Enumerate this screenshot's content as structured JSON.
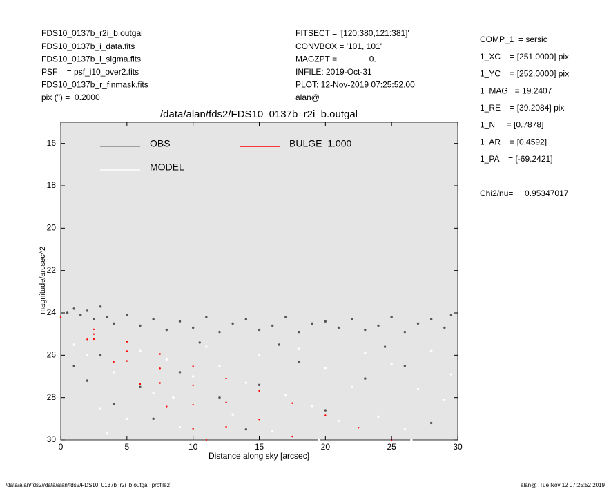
{
  "header_left": [
    "FDS10_0137b_r2i_b.outgal",
    "FDS10_0137b_i_data.fits",
    "FDS10_0137b_i_sigma.fits",
    "PSF    = psf_i10_over2.fits",
    "FDS10_0137b_r_finmask.fits",
    "pix (\") =  0.2000"
  ],
  "header_middle": [
    "FITSECT = '[120:380,121:381]'",
    "CONVBOX = '101, 101'",
    "MAGZPT =              0.",
    "INFILE: 2019-Oct-31",
    "PLOT: 12-Nov-2019 07:25:52.00",
    "alan@"
  ],
  "header_right": [
    "COMP_1  = sersic",
    "1_XC    = [251.0000] pix",
    "1_YC    = [252.0000] pix",
    "1_MAG   = 19.2407",
    "1_RE    = [39.2084] pix",
    "1_N     = [0.7878]",
    "1_AR    = [0.4592]",
    "1_PA    = [-69.2421]"
  ],
  "chi2": "Chi2/nu=     0.95347017",
  "footer_left": "/data/alan/fds2//data/alan/fds2/FDS10_0137b_r2i_b.outgal_profile2",
  "footer_right": "alan@  Tue Nov 12 07:25:52 2019",
  "chart_data": {
    "type": "scatter",
    "title": "/data/alan/fds2/FDS10_0137b_r2i_b.outgal",
    "xlabel": "Distance along sky [arcsec]",
    "ylabel": "magnitude/arcsec^2",
    "xlim": [
      0,
      30
    ],
    "ylim": [
      30,
      15
    ],
    "xticks": [
      0,
      5,
      10,
      15,
      20,
      25,
      30
    ],
    "yticks": [
      16,
      18,
      20,
      22,
      24,
      26,
      28,
      30
    ],
    "background": "#e5e5e5",
    "series": [
      {
        "name": "OBS",
        "color": "#555555",
        "x": [
          0.5,
          1,
          1.5,
          2,
          2.5,
          3,
          3.5,
          4,
          5,
          6,
          7,
          8,
          9,
          10,
          11,
          12,
          13,
          14,
          15,
          16,
          17,
          18,
          19,
          20,
          21,
          22,
          23,
          24,
          25,
          26,
          27,
          28,
          29,
          29.5,
          1,
          2,
          3,
          4,
          6,
          9,
          12,
          15,
          18,
          20,
          23,
          26,
          28,
          14,
          7,
          24.5,
          10.5,
          16.5
        ],
        "values": [
          24.0,
          23.8,
          24.1,
          23.9,
          24.3,
          23.7,
          24.2,
          24.5,
          24.1,
          24.6,
          24.3,
          24.8,
          24.4,
          24.7,
          24.2,
          24.9,
          24.5,
          24.3,
          24.8,
          24.6,
          24.2,
          24.9,
          24.5,
          24.4,
          24.7,
          24.3,
          24.8,
          24.6,
          24.2,
          24.9,
          24.5,
          24.3,
          24.7,
          24.1,
          26.5,
          27.2,
          26.0,
          28.3,
          27.5,
          26.8,
          28.0,
          27.4,
          26.3,
          28.6,
          27.1,
          26.5,
          29.2,
          29.5,
          29.0,
          25.6,
          25.4,
          25.5
        ]
      },
      {
        "name": "MODEL",
        "color": "#ffffff",
        "x": [
          1,
          2,
          3,
          4,
          5,
          6,
          7,
          8,
          9,
          10,
          11,
          12,
          13,
          14,
          15,
          16,
          17,
          18,
          19,
          20,
          21,
          22,
          23,
          24,
          25,
          26,
          27,
          28,
          29,
          29.5,
          3.5,
          8.5,
          19.5,
          26.5
        ],
        "values": [
          25.5,
          26.0,
          28.5,
          26.8,
          29.0,
          25.8,
          27.8,
          26.2,
          29.4,
          27.0,
          25.6,
          26.5,
          28.8,
          27.3,
          26.0,
          29.6,
          27.9,
          25.7,
          28.4,
          26.6,
          29.1,
          27.5,
          25.9,
          28.9,
          26.4,
          29.5,
          27.6,
          25.8,
          28.1,
          26.9,
          29.7,
          28.0,
          30.0,
          30.0
        ]
      },
      {
        "name": "BULGE  1.000",
        "color": "#ff0000",
        "x": [
          0,
          2.5,
          5,
          7.5,
          10,
          12.5,
          15,
          17.5,
          20,
          22.5,
          25,
          2.5,
          5,
          7.5,
          10,
          12.5,
          15,
          17.5,
          2.5,
          5,
          7.5,
          10,
          12.5,
          2,
          4,
          6,
          8,
          10,
          11
        ],
        "values": [
          24.2,
          24.78,
          25.36,
          25.94,
          26.52,
          27.1,
          27.68,
          28.26,
          28.84,
          29.42,
          30.0,
          25.0,
          25.81,
          26.62,
          27.42,
          28.23,
          29.03,
          29.84,
          25.24,
          26.27,
          27.31,
          28.34,
          29.38,
          25.25,
          26.31,
          27.36,
          28.42,
          29.47,
          30.0
        ]
      }
    ]
  }
}
